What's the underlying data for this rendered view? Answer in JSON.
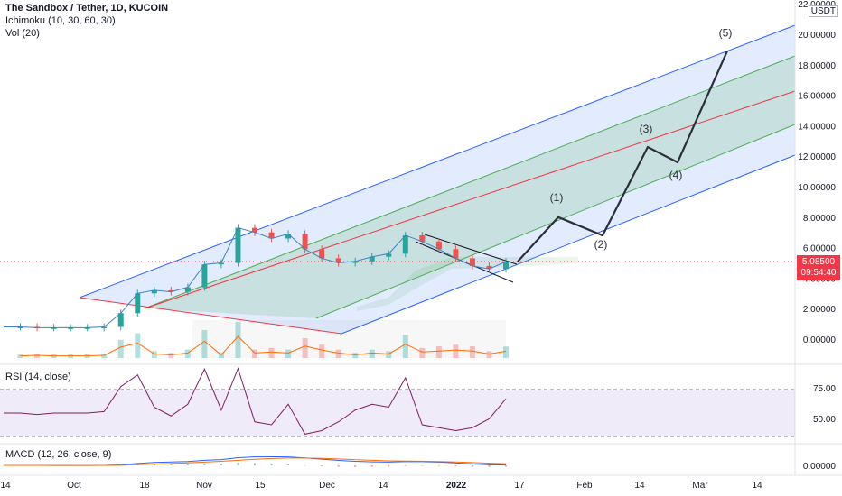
{
  "header": {
    "symbol_line": "The Sandbox / Tether, 1D, KUCOIN",
    "indicator_1": "Ichimoku (10, 30, 60, 30)",
    "indicator_2": "Vol (20)",
    "currency": "USDT"
  },
  "price_tag": {
    "price": "5.08500",
    "countdown": "09:54:40",
    "color": "#f23645"
  },
  "colors": {
    "channel_outer": "#2962ff",
    "channel_inner": "#4caf50",
    "median": "#f23645",
    "up_candle": "#26a69a",
    "down_candle": "#ef5350",
    "projection": "#2a2e39",
    "rsi_line": "#7e1f5f",
    "macd_line": "#2962ff",
    "signal_line": "#ff6d00"
  },
  "rsi_pane": {
    "label": "RSI (14, close)"
  },
  "macd_pane": {
    "label": "MACD (12, 26, close, 9)"
  },
  "chart_data": [
    {
      "type": "line",
      "title": "The Sandbox / Tether, 1D, KUCOIN",
      "x_ticks": [
        "14",
        "Oct",
        "18",
        "Nov",
        "15",
        "Dec",
        "14",
        "2022",
        "17",
        "Feb",
        "14",
        "Mar",
        "14"
      ],
      "y_ticks": [
        "0.00000",
        "2.00000",
        "4.00000",
        "6.00000",
        "8.00000",
        "10.00000",
        "12.00000",
        "14.00000",
        "16.00000",
        "18.00000",
        "20.00000",
        "22.00000"
      ],
      "ylim": [
        -1.5,
        22
      ],
      "series": [
        {
          "name": "SAND/USDT close (approx.)",
          "x": [
            "Sep 14",
            "Sep 21",
            "Sep 28",
            "Oct 5",
            "Oct 12",
            "Oct 19",
            "Oct 26",
            "Oct 31",
            "Nov 2",
            "Nov 4",
            "Nov 8",
            "Nov 12",
            "Nov 16",
            "Nov 19",
            "Nov 22",
            "Nov 24",
            "Nov 26",
            "Nov 29",
            "Dec 2",
            "Dec 5",
            "Dec 9",
            "Dec 13",
            "Dec 17",
            "Dec 21",
            "Dec 24",
            "Dec 27",
            "Dec 30",
            "Jan 3",
            "Jan 7",
            "Jan 10",
            "Jan 12"
          ],
          "values": [
            0.8,
            0.8,
            0.75,
            0.75,
            0.75,
            0.75,
            0.8,
            1.7,
            3.0,
            3.2,
            3.1,
            3.4,
            4.9,
            5.0,
            7.3,
            7.0,
            6.6,
            6.9,
            5.9,
            5.3,
            5.0,
            5.1,
            5.4,
            5.6,
            6.8,
            6.4,
            5.9,
            5.3,
            4.8,
            4.6,
            5.085
          ]
        }
      ],
      "projection_waves": {
        "labels": [
          "(1)",
          "(2)",
          "(3)",
          "(4)",
          "(5)"
        ],
        "values": [
          8.0,
          6.8,
          12.6,
          11.6,
          18.9
        ]
      },
      "current_price": 5.085
    },
    {
      "type": "line",
      "title": "RSI (14, close)",
      "y_ticks": [
        "50.00",
        "75.00"
      ],
      "ylim": [
        20,
        90
      ],
      "levels": [
        30,
        70
      ]
    },
    {
      "type": "line",
      "title": "MACD (12, 26, close, 9)",
      "y_ticks": [
        "0.00000"
      ]
    }
  ]
}
